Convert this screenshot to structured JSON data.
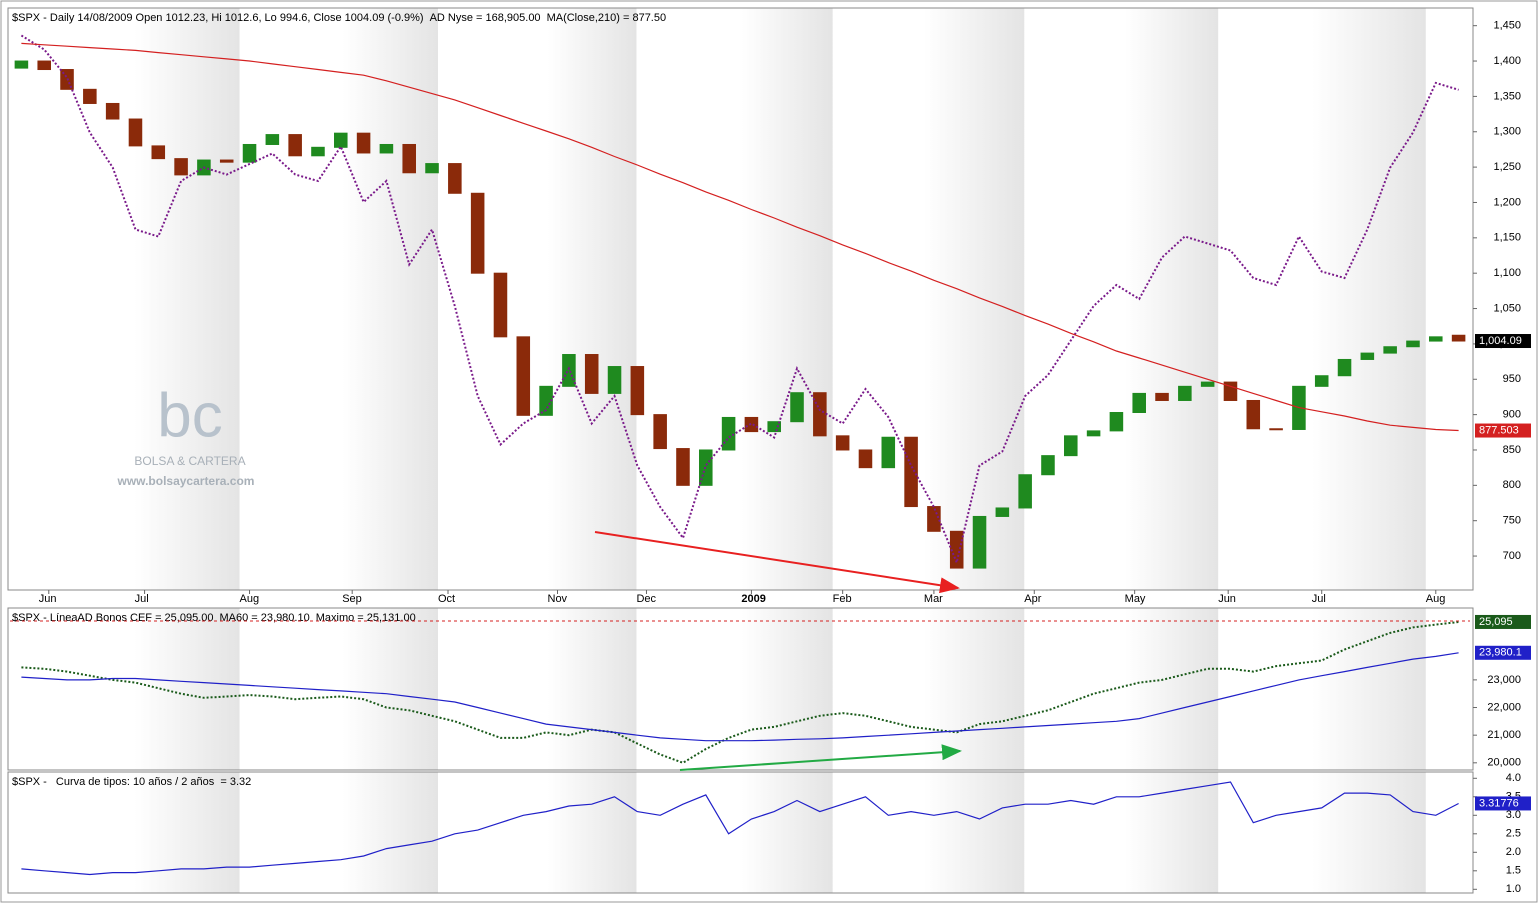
{
  "chart_data": [
    {
      "type": "candlestick",
      "title": "$SPX - Daily 14/08/2009 Open 1012.23, Hi 1012.6, Lo 994.6, Close 1004.09 (-0.9%)",
      "xlim": [
        0,
        64
      ],
      "xticks": [
        {
          "value": 1.7,
          "label": "Jun"
        },
        {
          "value": 5.9,
          "label": "Jul"
        },
        {
          "value": 10.5,
          "label": "Aug"
        },
        {
          "value": 15,
          "label": "Sep"
        },
        {
          "value": 19.2,
          "label": "Oct"
        },
        {
          "value": 24,
          "label": "Nov"
        },
        {
          "value": 27.9,
          "label": "Dec"
        },
        {
          "value": 32.5,
          "label": "2009"
        },
        {
          "value": 36.5,
          "label": "Feb"
        },
        {
          "value": 40.5,
          "label": "Mar"
        },
        {
          "value": 44.9,
          "label": "Apr"
        },
        {
          "value": 49.3,
          "label": "May"
        },
        {
          "value": 53.4,
          "label": "Jun"
        },
        {
          "value": 57.5,
          "label": "Jul"
        },
        {
          "value": 62.5,
          "label": "Aug"
        }
      ],
      "ylim": [
        652,
        1475
      ],
      "yticks": [
        700,
        750,
        800,
        850,
        900,
        950,
        {
          "value": 1000,
          "label": "1,000"
        },
        {
          "value": 1050,
          "label": "1,050"
        },
        {
          "value": 1100,
          "label": "1,100"
        },
        {
          "value": 1150,
          "label": "1,150"
        },
        {
          "value": 1200,
          "label": "1,200"
        },
        {
          "value": 1250,
          "label": "1,250"
        },
        {
          "value": 1300,
          "label": "1,300"
        },
        {
          "value": 1350,
          "label": "1,350"
        },
        {
          "value": 1400,
          "label": "1,400"
        },
        {
          "value": 1450,
          "label": "1,450"
        }
      ],
      "y2lim": [
        40000,
        190000
      ],
      "candles": {
        "color_up": "#1f8a1f",
        "color_down": "#8b2a0a",
        "last_label": "1,004.09",
        "label_color": "#000000",
        "open": [
          1390,
          1400,
          1388,
          1360,
          1340,
          1318,
          1280,
          1262,
          1239,
          1260,
          1257,
          1282,
          1296,
          1266,
          1278,
          1298,
          1270,
          1282,
          1242,
          1255,
          1213,
          1100,
          1010,
          899,
          940,
          985,
          930,
          968,
          900,
          852,
          800,
          850,
          896,
          876,
          890,
          931,
          870,
          850,
          825,
          868,
          770,
          735,
          683,
          756,
          768,
          815,
          842,
          870,
          877,
          903,
          930,
          920,
          940,
          946,
          920,
          880,
          879,
          940,
          955,
          978,
          987,
          996,
          1004,
          1012.23
        ],
        "close": [
          1400,
          1388,
          1360,
          1340,
          1318,
          1280,
          1262,
          1239,
          1260,
          1257,
          1282,
          1296,
          1266,
          1278,
          1298,
          1270,
          1282,
          1242,
          1255,
          1213,
          1100,
          1010,
          899,
          940,
          985,
          930,
          968,
          900,
          852,
          800,
          850,
          896,
          876,
          890,
          931,
          870,
          850,
          825,
          868,
          770,
          735,
          683,
          756,
          768,
          815,
          842,
          870,
          877,
          903,
          930,
          920,
          940,
          946,
          920,
          880,
          879,
          940,
          955,
          978,
          987,
          996,
          1004,
          1010,
          1004.09
        ]
      },
      "series": [
        {
          "name": "AD Nyse = 168,905.00",
          "color": "#7a1a8a",
          "style": "dotted",
          "axis": "y2",
          "values": [
            182900,
            179300,
            172100,
            157900,
            148900,
            132900,
            131100,
            145400,
            148900,
            147100,
            149800,
            152500,
            147100,
            145400,
            154300,
            140000,
            145400,
            123900,
            132900,
            113200,
            90000,
            77500,
            82900,
            86400,
            97100,
            82900,
            90000,
            72100,
            61400,
            53400,
            72100,
            79300,
            82900,
            79300,
            97100,
            86400,
            82900,
            91800,
            84600,
            72100,
            61400,
            47100,
            72100,
            75700,
            90000,
            95400,
            104300,
            113200,
            118600,
            115000,
            125700,
            131100,
            129300,
            127500,
            120400,
            118600,
            131100,
            122100,
            120400,
            132900,
            148900,
            157900,
            170700,
            168905
          ]
        },
        {
          "name": "MA(Close,210)",
          "suffix": " = 877.50",
          "color": "#d42020",
          "style": "solid",
          "last_label": "877.503",
          "values": [
            1425,
            1423,
            1421,
            1419,
            1417,
            1415,
            1412,
            1409,
            1406,
            1403,
            1400,
            1396,
            1392,
            1388,
            1384,
            1380,
            1372,
            1363,
            1354,
            1345,
            1334,
            1323,
            1312,
            1301,
            1290,
            1278,
            1265,
            1253,
            1240,
            1228,
            1215,
            1203,
            1190,
            1178,
            1165,
            1153,
            1140,
            1128,
            1115,
            1103,
            1090,
            1078,
            1065,
            1053,
            1040,
            1028,
            1015,
            1003,
            990,
            980,
            970,
            960,
            950,
            940,
            930,
            920,
            910,
            904,
            898,
            891,
            885,
            882,
            879,
            877.503
          ]
        }
      ],
      "watermark": {
        "logo": "bc",
        "name": "BOLSA & CARTERA",
        "url": "www.bolsaycartera.com"
      }
    },
    {
      "type": "line",
      "title": "$SPX - LíneaAD Bonos CEF = 25,095.00",
      "xlim": [
        0,
        64
      ],
      "ylim": [
        19740,
        25600
      ],
      "yticks": [
        {
          "value": 20000,
          "label": "20,000"
        },
        {
          "value": 21000,
          "label": "21,000"
        },
        {
          "value": 22000,
          "label": "22,000"
        },
        {
          "value": 23000,
          "label": "23,000"
        }
      ],
      "series": [
        {
          "color": "#1a5a1a",
          "style": "dotted",
          "last_label": "25,095",
          "values": [
            23450,
            23400,
            23300,
            23150,
            23000,
            22900,
            22700,
            22500,
            22350,
            22400,
            22450,
            22400,
            22300,
            22350,
            22400,
            22300,
            22000,
            21900,
            21700,
            21500,
            21200,
            20900,
            20900,
            21100,
            21000,
            21200,
            21100,
            20700,
            20300,
            20000,
            20500,
            20900,
            21200,
            21300,
            21500,
            21700,
            21800,
            21700,
            21500,
            21300,
            21200,
            21100,
            21400,
            21500,
            21700,
            21900,
            22200,
            22500,
            22700,
            22900,
            23000,
            23200,
            23400,
            23400,
            23300,
            23500,
            23600,
            23700,
            24100,
            24400,
            24700,
            24900,
            25000,
            25095
          ]
        },
        {
          "name": "MA60 = 23,980.10",
          "color": "#2020c8",
          "style": "solid",
          "last_label": "23,980.1",
          "values": [
            23100,
            23050,
            23000,
            23000,
            23050,
            23050,
            23000,
            22950,
            22900,
            22850,
            22800,
            22750,
            22700,
            22650,
            22600,
            22550,
            22500,
            22400,
            22300,
            22200,
            22000,
            21800,
            21600,
            21400,
            21300,
            21200,
            21100,
            21000,
            20900,
            20850,
            20800,
            20800,
            20800,
            20820,
            20850,
            20870,
            20900,
            20950,
            21000,
            21050,
            21100,
            21150,
            21200,
            21250,
            21300,
            21350,
            21400,
            21450,
            21500,
            21600,
            21800,
            22000,
            22200,
            22400,
            22600,
            22800,
            23000,
            23150,
            23300,
            23450,
            23600,
            23750,
            23850,
            23980.1
          ]
        },
        {
          "name": "Maximo = 25,131.00",
          "color": "#d42020",
          "style": "dashed",
          "level": 25131
        }
      ]
    },
    {
      "type": "line",
      "title": "$SPX - ",
      "xlim": [
        0,
        64
      ],
      "ylim": [
        0.9,
        4.17
      ],
      "yticks": [
        {
          "value": 1,
          "label": "1.0"
        },
        1.5,
        {
          "value": 2,
          "label": "2.0"
        },
        2.5,
        {
          "value": 3,
          "label": "3.0"
        },
        3.5,
        {
          "value": 4,
          "label": "4.0"
        }
      ],
      "series": [
        {
          "name": "Curva de tipos: 10 años / 2 años  = 3.32",
          "color": "#2020c8",
          "style": "solid",
          "last_label": "3.31776",
          "values": [
            1.55,
            1.5,
            1.45,
            1.4,
            1.45,
            1.45,
            1.5,
            1.55,
            1.55,
            1.6,
            1.6,
            1.65,
            1.7,
            1.75,
            1.8,
            1.9,
            2.1,
            2.2,
            2.3,
            2.5,
            2.6,
            2.8,
            3.0,
            3.1,
            3.25,
            3.3,
            3.5,
            3.1,
            3.0,
            3.3,
            3.55,
            2.5,
            2.9,
            3.1,
            3.4,
            3.1,
            3.3,
            3.5,
            3.0,
            3.1,
            3.0,
            3.1,
            2.9,
            3.2,
            3.3,
            3.3,
            3.4,
            3.3,
            3.5,
            3.5,
            3.6,
            3.7,
            3.8,
            3.9,
            2.8,
            3.0,
            3.1,
            3.2,
            3.6,
            3.6,
            3.55,
            3.1,
            3.0,
            3.32
          ]
        }
      ]
    }
  ]
}
